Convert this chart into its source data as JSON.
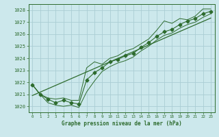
{
  "xlabel": "Graphe pression niveau de la mer (hPa)",
  "x": [
    0,
    1,
    2,
    3,
    4,
    5,
    6,
    7,
    8,
    9,
    10,
    11,
    12,
    13,
    14,
    15,
    16,
    17,
    18,
    19,
    20,
    21,
    22,
    23
  ],
  "y_main": [
    1021.8,
    1021.0,
    1020.6,
    1020.3,
    1020.5,
    1020.3,
    1020.2,
    1022.2,
    1022.8,
    1023.2,
    1023.7,
    1023.9,
    1024.2,
    1024.4,
    1024.9,
    1025.3,
    1025.8,
    1026.2,
    1026.4,
    1026.8,
    1027.1,
    1027.3,
    1027.7,
    1027.9
  ],
  "y_high": [
    1021.8,
    1021.0,
    1020.7,
    1020.6,
    1020.7,
    1020.5,
    1020.5,
    1023.2,
    1023.7,
    1023.5,
    1024.0,
    1024.2,
    1024.6,
    1024.8,
    1025.2,
    1025.6,
    1026.3,
    1027.1,
    1026.9,
    1027.3,
    1027.2,
    1027.5,
    1028.1,
    1028.1
  ],
  "y_low": [
    1021.8,
    1021.0,
    1020.3,
    1020.1,
    1020.0,
    1020.1,
    1019.9,
    1021.2,
    1022.1,
    1022.9,
    1023.3,
    1023.6,
    1023.8,
    1024.1,
    1024.6,
    1025.0,
    1025.5,
    1025.9,
    1026.1,
    1026.5,
    1026.8,
    1027.0,
    1027.4,
    1027.7
  ],
  "y_trend": [
    1020.9,
    1021.18,
    1021.46,
    1021.74,
    1022.02,
    1022.3,
    1022.58,
    1022.86,
    1023.14,
    1023.42,
    1023.7,
    1023.98,
    1024.26,
    1024.54,
    1024.82,
    1025.1,
    1025.38,
    1025.66,
    1025.94,
    1026.22,
    1026.5,
    1026.78,
    1027.06,
    1027.34
  ],
  "line_color": "#2d6b2d",
  "bg_color": "#cce8ec",
  "grid_color": "#aacdd4",
  "ylim": [
    1019.5,
    1028.5
  ],
  "yticks": [
    1020,
    1021,
    1022,
    1023,
    1024,
    1025,
    1026,
    1027,
    1028
  ],
  "xticks": [
    0,
    1,
    2,
    3,
    4,
    5,
    6,
    7,
    8,
    9,
    10,
    11,
    12,
    13,
    14,
    15,
    16,
    17,
    18,
    19,
    20,
    21,
    22,
    23
  ],
  "marker": "D",
  "marker_size": 2.5,
  "lw_main": 0.8,
  "lw_band": 0.7,
  "lw_trend": 0.9
}
